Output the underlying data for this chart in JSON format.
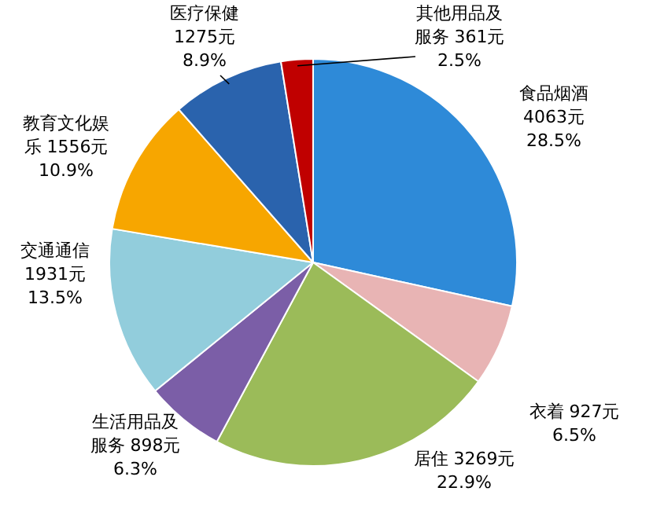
{
  "chart_data": {
    "type": "pie",
    "categories": [
      "食品烟酒",
      "衣着",
      "居住",
      "生活用品及服务",
      "交通通信",
      "教育文化娱乐",
      "医疗保健",
      "其他用品及服务"
    ],
    "values": [
      4063,
      927,
      3269,
      898,
      1931,
      1556,
      1275,
      361
    ],
    "colors": [
      "#2e8ad8",
      "#e8b4b4",
      "#9bbb59",
      "#7b5ea7",
      "#92cddc",
      "#f7a600",
      "#2a63ad",
      "#c00000"
    ],
    "value_labels": [
      "4063元\n28.5%",
      "927元\n6.5%",
      "3269元\n22.9%",
      "898元\n6.3%",
      "1931元\n13.5%",
      "1556元\n10.9%",
      "1275元\n8.9%",
      "361元\n2.5%"
    ],
    "legend": false
  }
}
